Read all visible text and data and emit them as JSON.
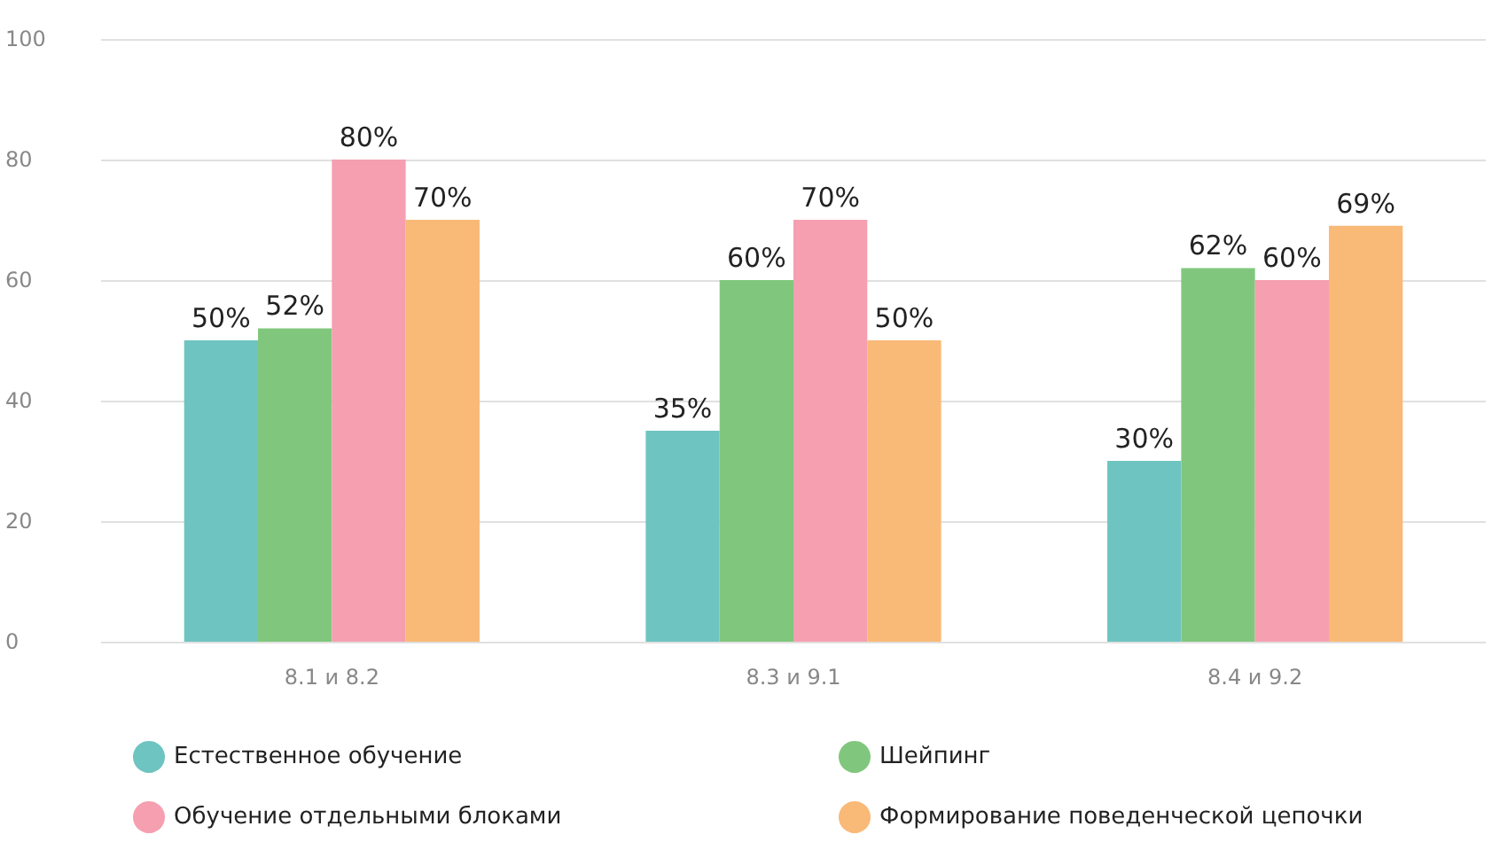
{
  "chart_data": {
    "type": "bar",
    "categories": [
      "8.1 и 8.2",
      "8.3 и 9.1",
      "8.4 и 9.2"
    ],
    "series": [
      {
        "name": "Естественное обучение",
        "color": "#6ec4c0",
        "values": [
          50,
          35,
          30
        ]
      },
      {
        "name": "Шейпинг",
        "color": "#80c77d",
        "values": [
          52,
          60,
          62
        ]
      },
      {
        "name": "Обучение отдельными блоками",
        "color": "#f59fb0",
        "values": [
          80,
          70,
          60
        ]
      },
      {
        "name": "Формирование поведенческой цепочки",
        "color": "#f9b977",
        "values": [
          70,
          50,
          69
        ]
      }
    ],
    "value_labels": [
      [
        "50%",
        "35%",
        "30%"
      ],
      [
        "52%",
        "60%",
        "62%"
      ],
      [
        "80%",
        "70%",
        "60%"
      ],
      [
        "70%",
        "50%",
        "69%"
      ]
    ],
    "ylim": [
      0,
      100
    ],
    "yticks": [
      0,
      20,
      40,
      60,
      80,
      100
    ],
    "grid": "y",
    "legend": "bottom"
  }
}
